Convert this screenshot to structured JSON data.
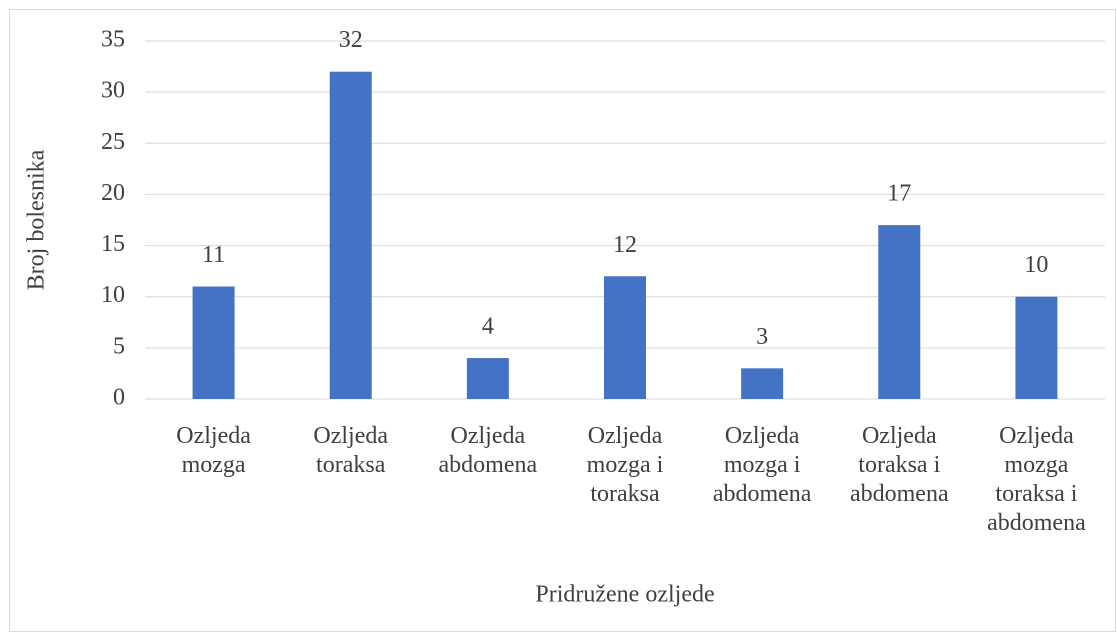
{
  "chart_data": {
    "type": "bar",
    "categories": [
      "Ozljeda mozga",
      "Ozljeda toraksa",
      "Ozljeda abdomena",
      "Ozljeda mozga i toraksa",
      "Ozljeda mozga i abdomena",
      "Ozljeda toraksa i abdomena",
      "Ozljeda mozga toraksa i abdomena"
    ],
    "values": [
      11,
      32,
      4,
      12,
      3,
      17,
      10
    ],
    "color": "#4472c4",
    "y_label": "Broj bolesnika",
    "x_label": "Pridružene ozljede",
    "ylim": [
      0,
      35
    ],
    "yticks": [
      0,
      5,
      10,
      15,
      20,
      25,
      30,
      35
    ],
    "grid": true
  }
}
